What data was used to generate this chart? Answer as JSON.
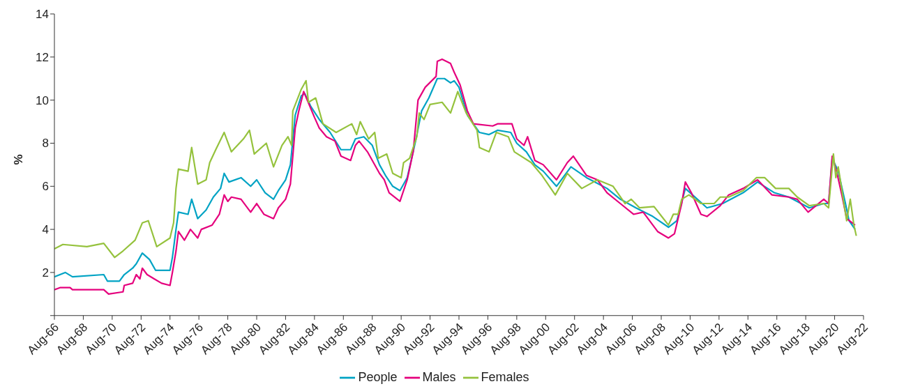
{
  "chart_data": {
    "type": "line",
    "ylabel": "%",
    "legend": "bottom",
    "grid": false,
    "marker": "none",
    "line_style": "solid",
    "xlim": [
      "1966-08",
      "2022-08"
    ],
    "xticks": [
      {
        "value": "1966-08",
        "label": "Aug-66"
      },
      {
        "value": "1968-08",
        "label": "Aug-68"
      },
      {
        "value": "1970-08",
        "label": "Aug-70"
      },
      {
        "value": "1972-08",
        "label": "Aug-72"
      },
      {
        "value": "1974-08",
        "label": "Aug-74"
      },
      {
        "value": "1976-08",
        "label": "Aug-76"
      },
      {
        "value": "1978-08",
        "label": "Aug-78"
      },
      {
        "value": "1980-08",
        "label": "Aug-80"
      },
      {
        "value": "1982-08",
        "label": "Aug-82"
      },
      {
        "value": "1984-08",
        "label": "Aug-84"
      },
      {
        "value": "1986-08",
        "label": "Aug-86"
      },
      {
        "value": "1988-08",
        "label": "Aug-88"
      },
      {
        "value": "1990-08",
        "label": "Aug-90"
      },
      {
        "value": "1992-08",
        "label": "Aug-92"
      },
      {
        "value": "1994-08",
        "label": "Aug-94"
      },
      {
        "value": "1996-08",
        "label": "Aug-96"
      },
      {
        "value": "1998-08",
        "label": "Aug-98"
      },
      {
        "value": "2000-08",
        "label": "Aug-00"
      },
      {
        "value": "2002-08",
        "label": "Aug-02"
      },
      {
        "value": "2004-08",
        "label": "Aug-04"
      },
      {
        "value": "2006-08",
        "label": "Aug-06"
      },
      {
        "value": "2008-08",
        "label": "Aug-08"
      },
      {
        "value": "2010-08",
        "label": "Aug-10"
      },
      {
        "value": "2012-08",
        "label": "Aug-12"
      },
      {
        "value": "2014-08",
        "label": "Aug-14"
      },
      {
        "value": "2016-08",
        "label": "Aug-16"
      },
      {
        "value": "2018-08",
        "label": "Aug-18"
      },
      {
        "value": "2020-08",
        "label": "Aug-20"
      },
      {
        "value": "2022-08",
        "label": "Aug-22"
      }
    ],
    "ylim": [
      0,
      14
    ],
    "yticks": [
      {
        "value": 0,
        "label": null
      },
      2,
      4,
      6,
      8,
      10,
      12,
      14
    ],
    "series": [
      {
        "name": "People",
        "color": "#00a3c4",
        "x": [
          "1966-08",
          "1967-05",
          "1967-11",
          "1970-01",
          "1970-04",
          "1971-02",
          "1971-06",
          "1972-01",
          "1972-04",
          "1972-09",
          "1973-03",
          "1973-08",
          "1974-08",
          "1974-10",
          "1975-01",
          "1975-03",
          "1975-11",
          "1976-02",
          "1976-07",
          "1977-02",
          "1977-08",
          "1978-02",
          "1978-05",
          "1978-09",
          "1979-07",
          "1980-03",
          "1980-08",
          "1981-03",
          "1981-10",
          "1982-02",
          "1982-08",
          "1982-12",
          "1983-04",
          "1983-09",
          "1983-12",
          "1984-05",
          "1984-12",
          "1985-09",
          "1986-06",
          "1987-02",
          "1987-06",
          "1988-01",
          "1988-08",
          "1989-02",
          "1989-07",
          "1990-01",
          "1990-07",
          "1991-01",
          "1991-08",
          "1992-01",
          "1992-07",
          "1993-02",
          "1993-08",
          "1994-01",
          "1994-04",
          "1994-08",
          "1995-03",
          "1996-01",
          "1996-09",
          "1997-04",
          "1998-03",
          "1998-08",
          "1999-04",
          "1999-11",
          "2000-06",
          "2001-05",
          "2002-05",
          "2003-06",
          "2004-11",
          "2005-10",
          "2006-11",
          "2008-01",
          "2009-02",
          "2009-09",
          "2010-04",
          "2011-02",
          "2011-10",
          "2012-11",
          "2014-04",
          "2015-04",
          "2016-06",
          "2017-06",
          "2018-11",
          "2019-11",
          "2020-03",
          "2020-06",
          "2020-11",
          "2021-05",
          "2021-08",
          "2022-01"
        ],
        "values": [
          1.8,
          2.0,
          1.8,
          1.9,
          1.6,
          1.6,
          1.9,
          2.2,
          2.4,
          2.9,
          2.6,
          2.1,
          2.1,
          2.7,
          4.0,
          4.8,
          4.7,
          5.4,
          4.5,
          4.9,
          5.5,
          5.9,
          6.6,
          6.2,
          6.4,
          6.0,
          6.3,
          5.7,
          5.4,
          5.8,
          6.3,
          7.0,
          9.3,
          10.2,
          10.3,
          9.7,
          9.1,
          8.5,
          7.7,
          7.7,
          8.2,
          8.3,
          7.9,
          7.0,
          6.5,
          6.0,
          5.8,
          6.4,
          8.1,
          9.5,
          10.1,
          11.0,
          11.0,
          10.8,
          10.9,
          10.6,
          9.3,
          8.5,
          8.4,
          8.6,
          8.5,
          8.0,
          7.6,
          7.0,
          6.7,
          6.0,
          6.9,
          6.4,
          5.9,
          5.4,
          5.0,
          4.6,
          4.1,
          4.4,
          5.9,
          5.4,
          5.0,
          5.2,
          5.7,
          6.2,
          5.7,
          5.5,
          5.0,
          5.2,
          5.2,
          7.3,
          6.7,
          5.2,
          4.4,
          4.0
        ]
      },
      {
        "name": "Males",
        "color": "#e5007d",
        "x": [
          "1966-08",
          "1967-01",
          "1967-09",
          "1967-11",
          "1970-01",
          "1970-05",
          "1971-05",
          "1971-06",
          "1972-01",
          "1972-04",
          "1972-07",
          "1972-09",
          "1973-01",
          "1973-07",
          "1974-01",
          "1974-08",
          "1974-10",
          "1975-01",
          "1975-03",
          "1975-08",
          "1976-01",
          "1976-07",
          "1976-10",
          "1977-07",
          "1978-01",
          "1978-05",
          "1978-08",
          "1978-11",
          "1979-07",
          "1980-03",
          "1980-08",
          "1981-02",
          "1981-10",
          "1982-02",
          "1982-08",
          "1982-12",
          "1983-04",
          "1983-07",
          "1983-11",
          "1984-08",
          "1984-12",
          "1985-06",
          "1986-01",
          "1986-06",
          "1987-02",
          "1987-06",
          "1987-09",
          "1988-04",
          "1988-09",
          "1989-02",
          "1989-06",
          "1989-10",
          "1990-07",
          "1991-01",
          "1991-06",
          "1991-10",
          "1992-04",
          "1993-01",
          "1993-02",
          "1993-06",
          "1994-01",
          "1994-04",
          "1994-09",
          "1995-03",
          "1995-08",
          "1996-12",
          "1997-04",
          "1998-04",
          "1998-08",
          "1999-02",
          "1999-05",
          "1999-11",
          "2000-06",
          "2001-05",
          "2002-02",
          "2002-07",
          "2003-06",
          "2004-03",
          "2004-11",
          "2005-10",
          "2006-09",
          "2007-05",
          "2008-05",
          "2009-02",
          "2009-07",
          "2010-01",
          "2010-04",
          "2010-09",
          "2011-05",
          "2011-10",
          "2012-09",
          "2013-04",
          "2014-04",
          "2015-04",
          "2016-04",
          "2017-06",
          "2018-01",
          "2018-10",
          "2019-11",
          "2020-03",
          "2020-06",
          "2020-10",
          "2021-02",
          "2021-06",
          "2022-01"
        ],
        "values": [
          1.2,
          1.3,
          1.3,
          1.2,
          1.2,
          1.0,
          1.1,
          1.4,
          1.5,
          1.9,
          1.7,
          2.2,
          1.9,
          1.7,
          1.5,
          1.4,
          2.0,
          3.0,
          3.9,
          3.5,
          4.0,
          3.6,
          4.0,
          4.2,
          4.7,
          5.6,
          5.3,
          5.5,
          5.4,
          4.8,
          5.2,
          4.7,
          4.5,
          5.0,
          5.4,
          6.1,
          8.7,
          9.5,
          10.4,
          9.2,
          8.7,
          8.3,
          8.1,
          7.4,
          7.2,
          7.9,
          8.1,
          7.6,
          7.1,
          6.6,
          6.3,
          5.7,
          5.3,
          6.3,
          7.6,
          10.0,
          10.6,
          11.1,
          11.8,
          11.9,
          11.7,
          11.3,
          10.7,
          9.5,
          8.9,
          8.8,
          8.9,
          8.9,
          8.2,
          7.9,
          8.3,
          7.2,
          7.0,
          6.3,
          7.1,
          7.4,
          6.5,
          6.3,
          5.7,
          5.2,
          4.7,
          4.8,
          3.9,
          3.6,
          3.8,
          5.2,
          6.2,
          5.7,
          4.7,
          4.6,
          5.1,
          5.6,
          5.9,
          6.3,
          5.6,
          5.5,
          5.4,
          4.8,
          5.4,
          5.2,
          7.4,
          6.6,
          5.6,
          4.5,
          4.2
        ]
      },
      {
        "name": "Females",
        "color": "#95c23d",
        "x": [
          "1966-08",
          "1967-03",
          "1968-11",
          "1970-01",
          "1970-10",
          "1971-05",
          "1972-03",
          "1972-09",
          "1973-02",
          "1973-09",
          "1974-08",
          "1974-11",
          "1975-01",
          "1975-03",
          "1975-11",
          "1976-02",
          "1976-07",
          "1977-02",
          "1977-05",
          "1977-10",
          "1978-05",
          "1978-11",
          "1979-09",
          "1980-02",
          "1980-06",
          "1981-04",
          "1981-10",
          "1982-05",
          "1982-10",
          "1983-01",
          "1983-02",
          "1983-09",
          "1984-01",
          "1984-03",
          "1984-09",
          "1985-03",
          "1986-02",
          "1987-03",
          "1987-07",
          "1987-10",
          "1988-05",
          "1988-10",
          "1989-01",
          "1989-08",
          "1990-01",
          "1990-08",
          "1990-10",
          "1991-03",
          "1991-09",
          "1991-11",
          "1992-03",
          "1992-08",
          "1993-06",
          "1994-01",
          "1994-07",
          "1995-02",
          "1995-11",
          "1996-01",
          "1996-09",
          "1997-03",
          "1998-01",
          "1998-06",
          "1999-08",
          "2000-05",
          "2001-04",
          "2002-02",
          "2003-02",
          "2004-03",
          "2005-04",
          "2006-02",
          "2006-07",
          "2007-02",
          "2008-02",
          "2008-07",
          "2009-02",
          "2009-06",
          "2009-10",
          "2010-01",
          "2010-07",
          "2011-05",
          "2012-04",
          "2012-09",
          "2013-04",
          "2014-04",
          "2015-03",
          "2015-10",
          "2016-07",
          "2017-06",
          "2018-01",
          "2018-11",
          "2019-11",
          "2020-03",
          "2020-07",
          "2020-09",
          "2020-11",
          "2021-06",
          "2021-09",
          "2021-12",
          "2022-02"
        ],
        "values": [
          3.1,
          3.3,
          3.2,
          3.35,
          2.7,
          3.0,
          3.5,
          4.3,
          4.4,
          3.2,
          3.6,
          4.3,
          5.9,
          6.8,
          6.7,
          7.8,
          6.1,
          6.3,
          7.1,
          7.7,
          8.5,
          7.6,
          8.2,
          8.6,
          7.5,
          8.0,
          6.9,
          7.9,
          8.3,
          7.9,
          9.5,
          10.5,
          10.9,
          9.9,
          10.1,
          8.9,
          8.5,
          8.9,
          8.4,
          9.0,
          8.2,
          8.5,
          7.3,
          7.5,
          6.6,
          6.4,
          7.1,
          7.3,
          8.3,
          9.4,
          9.1,
          9.8,
          9.9,
          9.4,
          10.4,
          9.4,
          8.6,
          7.8,
          7.6,
          8.5,
          8.3,
          7.6,
          7.1,
          6.5,
          5.6,
          6.6,
          5.9,
          6.3,
          6.0,
          5.2,
          5.4,
          5.0,
          5.06,
          4.7,
          4.2,
          4.7,
          4.7,
          5.4,
          5.6,
          5.2,
          5.2,
          5.5,
          5.5,
          5.8,
          6.4,
          6.4,
          5.9,
          5.9,
          5.5,
          5.1,
          5.2,
          5.0,
          7.5,
          6.4,
          6.9,
          4.4,
          5.4,
          4.2,
          3.7
        ]
      }
    ]
  }
}
